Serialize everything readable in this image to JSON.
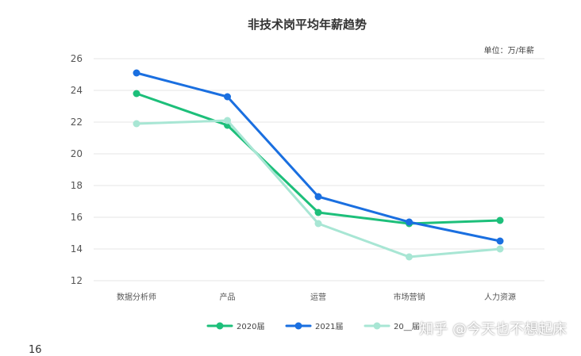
{
  "chart_data": {
    "type": "line",
    "title": "非技术岗平均年薪趋势",
    "unit_label": "单位：万/年薪",
    "categories": [
      "数据分析师",
      "产品",
      "运营",
      "市场营销",
      "人力资源"
    ],
    "ylim": [
      12,
      26
    ],
    "yticks": [
      12,
      14,
      16,
      18,
      20,
      22,
      24,
      26
    ],
    "grid": true,
    "legend_position": "bottom",
    "series": [
      {
        "name": "2020届",
        "color": "#1dbf7a",
        "values": [
          23.8,
          21.8,
          16.3,
          15.6,
          15.8
        ]
      },
      {
        "name": "2021届",
        "color": "#1a6fe0",
        "values": [
          25.1,
          23.6,
          17.3,
          15.7,
          14.5
        ]
      },
      {
        "name": "20__届",
        "color": "#a8e6d4",
        "values": [
          21.9,
          22.1,
          15.6,
          13.5,
          14.0
        ]
      }
    ]
  },
  "watermark_text": "知乎 @今天也不想起床",
  "page_number": "16"
}
